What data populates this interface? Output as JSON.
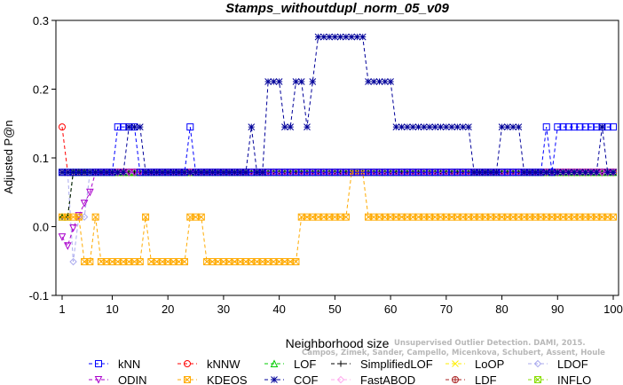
{
  "chart_data": {
    "type": "line",
    "title": "Stamps_withoutdupl_norm_05_v09",
    "xlabel": "Neighborhood size",
    "ylabel": "Adjusted P@n",
    "xlim": [
      1,
      100
    ],
    "ylim": [
      -0.1,
      0.3
    ],
    "xticks": [
      "1",
      "10",
      "20",
      "30",
      "40",
      "50",
      "60",
      "70",
      "80",
      "90",
      "100"
    ],
    "yticks": [
      "-0.1",
      "0.0",
      "0.1",
      "0.2",
      "0.3"
    ],
    "legend_position": "bottom",
    "series": [
      {
        "name": "kNN",
        "color": "#0000ff",
        "marker": "square",
        "points": [
          [
            1,
            0.079
          ],
          [
            10,
            0.079
          ],
          [
            11,
            0.145
          ],
          [
            14,
            0.145
          ],
          [
            15,
            0.079
          ],
          [
            23,
            0.079
          ],
          [
            24,
            0.145
          ],
          [
            25,
            0.079
          ],
          [
            87,
            0.079
          ],
          [
            88,
            0.145
          ],
          [
            89,
            0.079
          ],
          [
            90,
            0.145
          ],
          [
            100,
            0.145
          ]
        ]
      },
      {
        "name": "kNNW",
        "color": "#ff0000",
        "marker": "circle",
        "points": [
          [
            1,
            0.145
          ],
          [
            2,
            0.079
          ],
          [
            100,
            0.079
          ]
        ]
      },
      {
        "name": "LOF",
        "color": "#00cc00",
        "marker": "triangle",
        "points": [
          [
            1,
            0.014
          ],
          [
            2,
            0.014
          ],
          [
            3,
            0.079
          ],
          [
            100,
            0.079
          ]
        ]
      },
      {
        "name": "SimplifiedLOF",
        "color": "#000000",
        "marker": "plus",
        "points": [
          [
            1,
            0.014
          ],
          [
            2,
            0.014
          ],
          [
            3,
            0.079
          ],
          [
            100,
            0.079
          ]
        ]
      },
      {
        "name": "LoOP",
        "color": "#ffee00",
        "marker": "x",
        "points": [
          [
            1,
            0.079
          ],
          [
            100,
            0.079
          ]
        ]
      },
      {
        "name": "LDOF",
        "color": "#aaaaee",
        "marker": "diamond",
        "points": [
          [
            1,
            0.079
          ],
          [
            2,
            0.079
          ],
          [
            3,
            -0.051
          ],
          [
            4,
            0.014
          ],
          [
            5,
            0.014
          ],
          [
            6,
            0.079
          ],
          [
            100,
            0.079
          ]
        ]
      },
      {
        "name": "ODIN",
        "color": "#aa00cc",
        "marker": "triangle-down",
        "points": [
          [
            1,
            -0.015
          ],
          [
            2,
            -0.028
          ],
          [
            3,
            -0.002
          ],
          [
            4,
            0.016
          ],
          [
            5,
            0.034
          ],
          [
            6,
            0.05
          ],
          [
            7,
            0.079
          ],
          [
            100,
            0.079
          ]
        ]
      },
      {
        "name": "KDEOS",
        "color": "#ffaa00",
        "marker": "square-x",
        "points": [
          [
            1,
            0.014
          ],
          [
            2,
            0.014
          ],
          [
            3,
            0.014
          ],
          [
            4,
            0.014
          ],
          [
            5,
            -0.051
          ],
          [
            6,
            -0.051
          ],
          [
            7,
            0.014
          ],
          [
            8,
            -0.051
          ],
          [
            9,
            -0.051
          ],
          [
            10,
            -0.051
          ],
          [
            11,
            -0.051
          ],
          [
            12,
            -0.051
          ],
          [
            13,
            -0.051
          ],
          [
            14,
            -0.051
          ],
          [
            15,
            -0.051
          ],
          [
            16,
            0.014
          ],
          [
            17,
            -0.051
          ],
          [
            18,
            -0.051
          ],
          [
            19,
            -0.051
          ],
          [
            20,
            -0.051
          ],
          [
            21,
            -0.051
          ],
          [
            22,
            -0.051
          ],
          [
            23,
            -0.051
          ],
          [
            24,
            0.014
          ],
          [
            25,
            0.014
          ],
          [
            26,
            0.014
          ],
          [
            27,
            -0.051
          ],
          [
            28,
            -0.051
          ],
          [
            29,
            -0.051
          ],
          [
            30,
            -0.051
          ],
          [
            31,
            -0.051
          ],
          [
            32,
            -0.051
          ],
          [
            33,
            -0.051
          ],
          [
            34,
            -0.051
          ],
          [
            35,
            -0.051
          ],
          [
            36,
            -0.051
          ],
          [
            37,
            -0.051
          ],
          [
            38,
            -0.051
          ],
          [
            39,
            -0.051
          ],
          [
            40,
            -0.051
          ],
          [
            41,
            -0.051
          ],
          [
            42,
            -0.051
          ],
          [
            43,
            -0.051
          ],
          [
            44,
            0.014
          ],
          [
            45,
            0.014
          ],
          [
            46,
            0.014
          ],
          [
            47,
            0.014
          ],
          [
            48,
            0.014
          ],
          [
            49,
            0.014
          ],
          [
            50,
            0.014
          ],
          [
            51,
            0.014
          ],
          [
            52,
            0.014
          ],
          [
            53,
            0.079
          ],
          [
            54,
            0.079
          ],
          [
            55,
            0.079
          ],
          [
            56,
            0.014
          ],
          [
            100,
            0.014
          ]
        ]
      },
      {
        "name": "COF",
        "color": "#000099",
        "marker": "asterisk",
        "points": [
          [
            1,
            0.079
          ],
          [
            12,
            0.079
          ],
          [
            13,
            0.145
          ],
          [
            14,
            0.145
          ],
          [
            15,
            0.145
          ],
          [
            16,
            0.079
          ],
          [
            34,
            0.079
          ],
          [
            35,
            0.145
          ],
          [
            36,
            0.079
          ],
          [
            37,
            0.079
          ],
          [
            38,
            0.211
          ],
          [
            39,
            0.211
          ],
          [
            40,
            0.211
          ],
          [
            41,
            0.145
          ],
          [
            42,
            0.145
          ],
          [
            43,
            0.211
          ],
          [
            44,
            0.211
          ],
          [
            45,
            0.145
          ],
          [
            46,
            0.211
          ],
          [
            47,
            0.276
          ],
          [
            48,
            0.276
          ],
          [
            49,
            0.276
          ],
          [
            50,
            0.276
          ],
          [
            51,
            0.276
          ],
          [
            52,
            0.276
          ],
          [
            53,
            0.276
          ],
          [
            54,
            0.276
          ],
          [
            55,
            0.276
          ],
          [
            56,
            0.211
          ],
          [
            57,
            0.211
          ],
          [
            58,
            0.211
          ],
          [
            59,
            0.211
          ],
          [
            60,
            0.211
          ],
          [
            61,
            0.145
          ],
          [
            62,
            0.145
          ],
          [
            63,
            0.145
          ],
          [
            64,
            0.145
          ],
          [
            65,
            0.145
          ],
          [
            66,
            0.145
          ],
          [
            67,
            0.145
          ],
          [
            68,
            0.145
          ],
          [
            69,
            0.145
          ],
          [
            70,
            0.145
          ],
          [
            71,
            0.145
          ],
          [
            72,
            0.145
          ],
          [
            73,
            0.145
          ],
          [
            74,
            0.145
          ],
          [
            75,
            0.079
          ],
          [
            79,
            0.079
          ],
          [
            80,
            0.145
          ],
          [
            81,
            0.145
          ],
          [
            82,
            0.145
          ],
          [
            83,
            0.145
          ],
          [
            84,
            0.079
          ],
          [
            97,
            0.079
          ],
          [
            98,
            0.145
          ],
          [
            99,
            0.079
          ],
          [
            100,
            0.079
          ]
        ]
      },
      {
        "name": "FastABOD",
        "color": "#ffaaee",
        "marker": "diamond",
        "points": [
          [
            1,
            0.079
          ],
          [
            100,
            0.079
          ]
        ]
      },
      {
        "name": "LDF",
        "color": "#aa2222",
        "marker": "circle-plus",
        "points": [
          [
            1,
            0.079
          ],
          [
            100,
            0.079
          ]
        ]
      },
      {
        "name": "INFLO",
        "color": "#88dd00",
        "marker": "square-x",
        "points": [
          [
            1,
            0.079
          ],
          [
            100,
            0.079
          ]
        ]
      }
    ],
    "legend_order": [
      "kNN",
      "kNNW",
      "LOF",
      "SimplifiedLOF",
      "LoOP",
      "LDOF",
      "ODIN",
      "KDEOS",
      "COF",
      "FastABOD",
      "LDF",
      "INFLO"
    ]
  },
  "watermark": {
    "line1": "Unsupervised Outlier Detection. DAMI, 2015.",
    "line2": "Campos, Zimek, Sander, Campello, Micenkova, Schubert, Assent, Houle"
  }
}
